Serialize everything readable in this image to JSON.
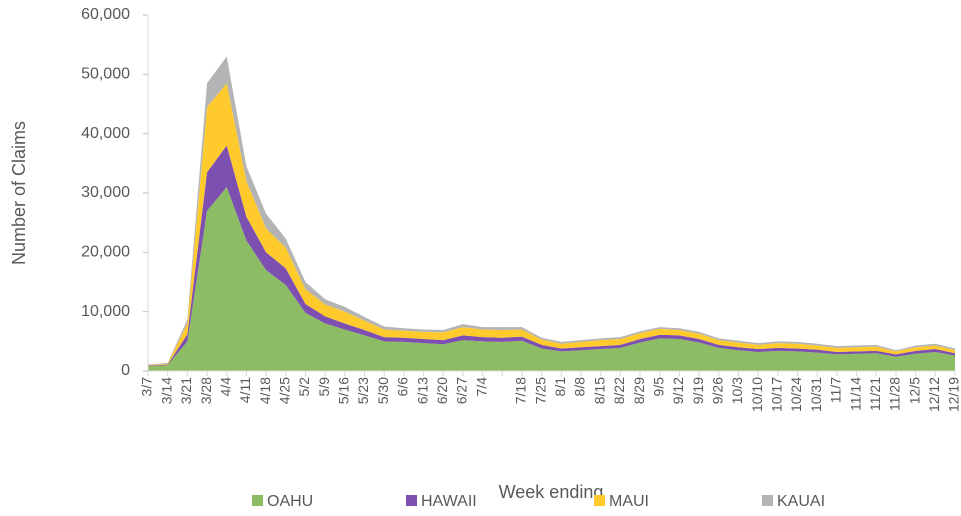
{
  "chart_data": {
    "type": "stacked_area",
    "y_label": "Number of Claims",
    "x_label": "Week ending",
    "categories": [
      "3/7",
      "3/14",
      "3/21",
      "3/28",
      "4/4",
      "4/11",
      "4/18",
      "4/25",
      "5/2",
      "5/9",
      "5/16",
      "5/23",
      "5/30",
      "6/6",
      "6/13",
      "6/20",
      "6/27",
      "7/4",
      null,
      "7/18",
      "7/25",
      "8/1",
      "8/8",
      "8/15",
      "8/22",
      "8/29",
      "9/5",
      "9/12",
      "9/19",
      "9/26",
      "10/3",
      "10/10",
      "10/17",
      "10/24",
      "10/31",
      "11/7",
      "11/14",
      "11/21",
      "11/28",
      "12/5",
      "12/12",
      "12/19"
    ],
    "series": [
      {
        "name": "OAHU",
        "color": "#8cbd65",
        "values": [
          800,
          1000,
          5000,
          27000,
          31000,
          22000,
          17000,
          14500,
          9800,
          8000,
          7000,
          6000,
          5000,
          4900,
          4700,
          4500,
          5200,
          5000,
          4900,
          5100,
          3800,
          3300,
          3500,
          3700,
          3900,
          4800,
          5500,
          5400,
          4800,
          3900,
          3500,
          3200,
          3400,
          3300,
          3100,
          2800,
          2900,
          3000,
          2400,
          2900,
          3200,
          2600
        ]
      },
      {
        "name": "HAWAII",
        "color": "#7d4fb1",
        "values": [
          100,
          100,
          1200,
          6500,
          7000,
          4000,
          3000,
          2800,
          1500,
          1200,
          1000,
          900,
          700,
          700,
          700,
          700,
          800,
          700,
          700,
          700,
          600,
          500,
          500,
          500,
          500,
          600,
          600,
          600,
          600,
          500,
          500,
          500,
          500,
          500,
          500,
          400,
          400,
          400,
          400,
          500,
          500,
          400
        ]
      },
      {
        "name": "MAUI",
        "color": "#ffca2c",
        "values": [
          100,
          150,
          1800,
          11000,
          10500,
          6000,
          4000,
          3500,
          2500,
          2000,
          2000,
          1600,
          1300,
          1200,
          1200,
          1300,
          1400,
          1300,
          1300,
          1200,
          900,
          800,
          900,
          1000,
          1000,
          1000,
          1000,
          900,
          900,
          800,
          800,
          700,
          800,
          800,
          700,
          700,
          700,
          700,
          500,
          600,
          600,
          500
        ]
      },
      {
        "name": "KAUAI",
        "color": "#b4b4b4",
        "values": [
          100,
          100,
          700,
          4000,
          4500,
          2500,
          2500,
          1500,
          1200,
          900,
          800,
          600,
          500,
          400,
          400,
          400,
          500,
          400,
          500,
          400,
          300,
          300,
          300,
          300,
          300,
          300,
          300,
          300,
          300,
          300,
          300,
          300,
          300,
          300,
          300,
          300,
          300,
          300,
          200,
          300,
          300,
          300
        ]
      }
    ],
    "ylim": [
      0,
      60000
    ],
    "yticks": [
      0,
      {
        "value": 10000,
        "label": "10,000"
      },
      {
        "value": 20000,
        "label": "20,000"
      },
      {
        "value": 30000,
        "label": "30,000"
      },
      {
        "value": 40000,
        "label": "40,000"
      },
      {
        "value": 50000,
        "label": "50,000"
      },
      {
        "value": 60000,
        "label": "60,000"
      }
    ],
    "legend": "bottom"
  }
}
